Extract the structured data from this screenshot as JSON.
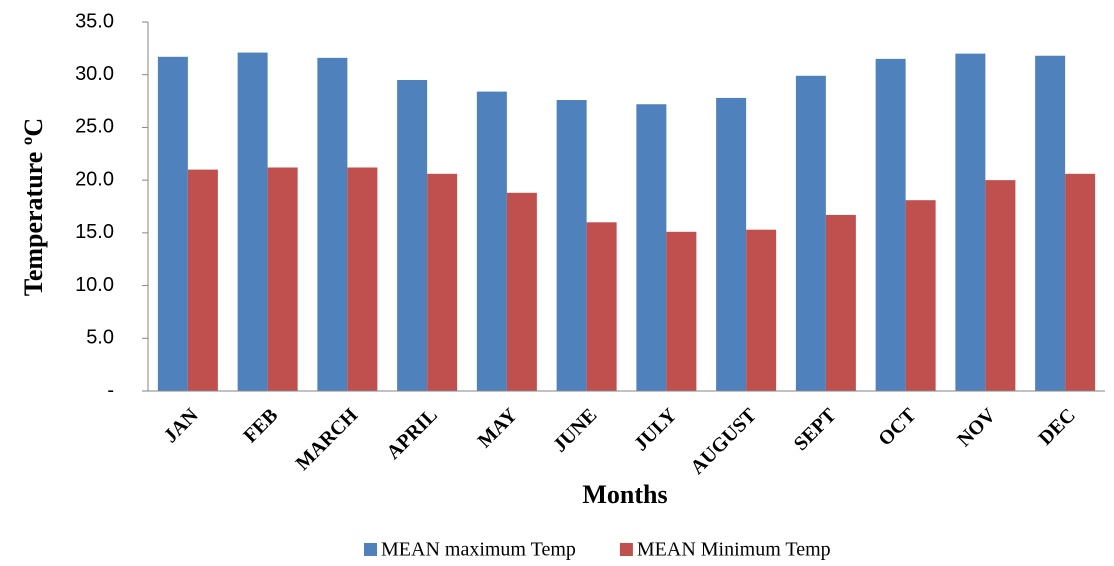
{
  "chart_data": {
    "type": "bar",
    "x_label": "Months",
    "y_label": "Temperature ºC",
    "categories": [
      "JAN",
      "FEB",
      "MARCH",
      "APRIL",
      "MAY",
      "JUNE",
      "JULY",
      "AUGUST",
      "SEPT",
      "OCT",
      "NOV",
      "DEC"
    ],
    "series": [
      {
        "name": "MEAN maximum Temp",
        "color": "#4f81bd",
        "values": [
          31.7,
          32.1,
          31.6,
          29.5,
          28.4,
          27.6,
          27.2,
          27.8,
          29.9,
          31.5,
          32.0,
          31.8
        ]
      },
      {
        "name": "MEAN Minimum Temp",
        "color": "#c0504d",
        "values": [
          21.0,
          21.2,
          21.2,
          20.6,
          18.8,
          16.0,
          15.1,
          15.3,
          16.7,
          18.1,
          20.0,
          20.6
        ]
      }
    ],
    "ylim": [
      0,
      35
    ],
    "yticks": [
      {
        "value": 0,
        "label": "-"
      },
      {
        "value": 5,
        "label": "5.0"
      },
      {
        "value": 10,
        "label": "10.0"
      },
      {
        "value": 15,
        "label": "15.0"
      },
      {
        "value": 20,
        "label": "20.0"
      },
      {
        "value": 25,
        "label": "25.0"
      },
      {
        "value": 30,
        "label": "30.0"
      },
      {
        "value": 35,
        "label": "35.0"
      }
    ],
    "grid": false,
    "legend": "bottom"
  }
}
